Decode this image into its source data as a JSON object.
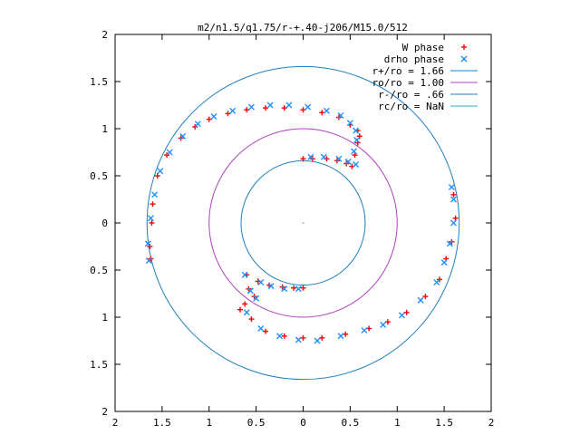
{
  "chart_data": {
    "type": "scatter",
    "title": "m2/n1.5/q1.75/r-+.40-j206/M15.0/512",
    "xlabel": "",
    "ylabel": "",
    "xlim": [
      -2,
      2
    ],
    "ylim": [
      -2,
      2
    ],
    "x_ticks": [
      "2",
      "1.5",
      "1",
      "0.5",
      "0",
      "0.5",
      "1",
      "1.5",
      "2"
    ],
    "y_ticks": [
      "2",
      "1.5",
      "1",
      "0.5",
      "0",
      "0.5",
      "1",
      "1.5",
      "2"
    ],
    "legend_position": "top-right",
    "grid": false,
    "legend": [
      {
        "label": "W phase",
        "kind": "marker-plus",
        "color": "#ff0000"
      },
      {
        "label": "drho phase",
        "kind": "marker-x",
        "color": "#1e90ff"
      },
      {
        "label": "r+/ro = 1.66",
        "kind": "line",
        "color": "#1f7fbf"
      },
      {
        "label": "ro/ro = 1.00",
        "kind": "line",
        "color": "#b040c0"
      },
      {
        "label": "r-/ro = .66",
        "kind": "line",
        "color": "#1f7fbf"
      },
      {
        "label": "rc/ro = NaN",
        "kind": "line",
        "color": "#20b0c0"
      }
    ],
    "circles": [
      {
        "name": "r+/ro = 1.66",
        "radius": 1.66
      },
      {
        "name": "ro/ro = 1.00",
        "radius": 1.0
      },
      {
        "name": "r-/ro = .66",
        "radius": 0.66
      }
    ],
    "series": [
      {
        "name": "W phase",
        "color": "#ff0000",
        "points": [
          [
            -1.62,
            -0.38
          ],
          [
            -1.63,
            -0.25
          ],
          [
            -1.61,
            0.0
          ],
          [
            -1.6,
            0.2
          ],
          [
            -1.55,
            0.5
          ],
          [
            -1.45,
            0.72
          ],
          [
            -1.3,
            0.9
          ],
          [
            -1.15,
            1.02
          ],
          [
            -1.0,
            1.1
          ],
          [
            -0.8,
            1.16
          ],
          [
            -0.6,
            1.2
          ],
          [
            -0.4,
            1.22
          ],
          [
            -0.2,
            1.22
          ],
          [
            0.0,
            1.2
          ],
          [
            0.2,
            1.17
          ],
          [
            0.38,
            1.12
          ],
          [
            0.5,
            1.04
          ],
          [
            0.58,
            0.98
          ],
          [
            0.6,
            0.92
          ],
          [
            0.58,
            0.85
          ],
          [
            0.55,
            0.72
          ],
          [
            0.52,
            0.6
          ],
          [
            0.46,
            0.63
          ],
          [
            0.36,
            0.66
          ],
          [
            0.25,
            0.68
          ],
          [
            0.1,
            0.68
          ],
          [
            0.0,
            0.68
          ],
          [
            -0.67,
            -0.92
          ],
          [
            -0.62,
            -0.86
          ],
          [
            -0.52,
            -0.78
          ],
          [
            -0.58,
            -0.7
          ],
          [
            -0.6,
            -0.55
          ],
          [
            -0.48,
            -0.62
          ],
          [
            -0.36,
            -0.66
          ],
          [
            -0.22,
            -0.68
          ],
          [
            -0.1,
            -0.69
          ],
          [
            0.0,
            -0.69
          ],
          [
            -0.55,
            -1.02
          ],
          [
            -0.4,
            -1.15
          ],
          [
            -0.2,
            -1.2
          ],
          [
            0.0,
            -1.22
          ],
          [
            0.2,
            -1.22
          ],
          [
            0.45,
            -1.18
          ],
          [
            0.7,
            -1.12
          ],
          [
            0.9,
            -1.05
          ],
          [
            1.1,
            -0.95
          ],
          [
            1.3,
            -0.78
          ],
          [
            1.45,
            -0.6
          ],
          [
            1.52,
            -0.38
          ],
          [
            1.58,
            -0.2
          ],
          [
            1.62,
            0.05
          ],
          [
            1.6,
            0.3
          ]
        ]
      },
      {
        "name": "drho phase",
        "color": "#1e90ff",
        "points": [
          [
            -1.64,
            -0.4
          ],
          [
            -1.65,
            -0.22
          ],
          [
            -1.62,
            0.05
          ],
          [
            -1.58,
            0.3
          ],
          [
            -1.52,
            0.55
          ],
          [
            -1.42,
            0.75
          ],
          [
            -1.28,
            0.92
          ],
          [
            -1.12,
            1.05
          ],
          [
            -0.95,
            1.13
          ],
          [
            -0.75,
            1.19
          ],
          [
            -0.55,
            1.23
          ],
          [
            -0.35,
            1.25
          ],
          [
            -0.15,
            1.25
          ],
          [
            0.05,
            1.23
          ],
          [
            0.25,
            1.19
          ],
          [
            0.4,
            1.14
          ],
          [
            0.5,
            1.06
          ],
          [
            0.56,
            0.98
          ],
          [
            0.57,
            0.88
          ],
          [
            0.54,
            0.76
          ],
          [
            0.56,
            0.62
          ],
          [
            0.48,
            0.65
          ],
          [
            0.38,
            0.68
          ],
          [
            0.22,
            0.7
          ],
          [
            0.08,
            0.7
          ],
          [
            -0.62,
            -0.55
          ],
          [
            -0.56,
            -0.72
          ],
          [
            -0.5,
            -0.8
          ],
          [
            -0.45,
            -0.63
          ],
          [
            -0.34,
            -0.67
          ],
          [
            -0.2,
            -0.7
          ],
          [
            -0.05,
            -0.7
          ],
          [
            -0.6,
            -0.95
          ],
          [
            -0.45,
            -1.12
          ],
          [
            -0.25,
            -1.2
          ],
          [
            -0.05,
            -1.24
          ],
          [
            0.15,
            -1.25
          ],
          [
            0.4,
            -1.2
          ],
          [
            0.65,
            -1.14
          ],
          [
            0.85,
            -1.08
          ],
          [
            1.05,
            -0.98
          ],
          [
            1.25,
            -0.82
          ],
          [
            1.42,
            -0.63
          ],
          [
            1.5,
            -0.42
          ],
          [
            1.56,
            -0.22
          ],
          [
            1.6,
            0.0
          ],
          [
            1.6,
            0.25
          ],
          [
            1.58,
            0.38
          ]
        ]
      }
    ]
  }
}
